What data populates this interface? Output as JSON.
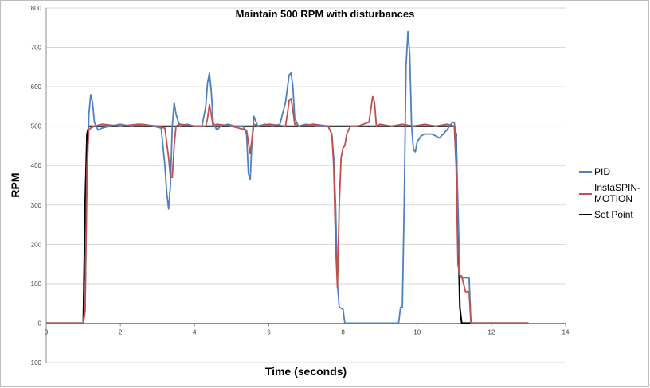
{
  "chart_data": {
    "type": "line",
    "title": "Maintain 500 RPM with disturbances",
    "xlabel": "Time (seconds)",
    "ylabel": "RPM",
    "xlim": [
      0,
      14
    ],
    "ylim": [
      -100,
      800
    ],
    "xticks": [
      0,
      2,
      4,
      6,
      8,
      10,
      12,
      14
    ],
    "yticks": [
      -100,
      0,
      100,
      200,
      300,
      400,
      500,
      600,
      700,
      800
    ],
    "grid": "horizontal",
    "legend": "right",
    "series": [
      {
        "name": "PID",
        "color": "#4f81bd",
        "x": [
          0,
          1.0,
          1.05,
          1.1,
          1.15,
          1.2,
          1.25,
          1.3,
          1.4,
          1.5,
          1.7,
          2.0,
          2.3,
          2.6,
          2.9,
          3.1,
          3.2,
          3.25,
          3.3,
          3.35,
          3.4,
          3.45,
          3.5,
          3.6,
          3.8,
          4.0,
          4.2,
          4.3,
          4.35,
          4.4,
          4.45,
          4.5,
          4.6,
          4.7,
          4.9,
          5.1,
          5.3,
          5.4,
          5.45,
          5.5,
          5.55,
          5.6,
          5.7,
          5.9,
          6.1,
          6.3,
          6.45,
          6.55,
          6.6,
          6.65,
          6.7,
          6.8,
          7.0,
          7.3,
          7.6,
          7.7,
          7.75,
          7.8,
          7.85,
          7.9,
          8.0,
          8.05,
          8.1,
          8.5,
          9.0,
          9.5,
          9.55,
          9.6,
          9.65,
          9.7,
          9.75,
          9.8,
          9.85,
          9.9,
          9.95,
          10.0,
          10.1,
          10.2,
          10.4,
          10.6,
          10.8,
          10.95,
          11.0,
          11.05,
          11.1,
          11.15,
          11.2,
          11.3,
          11.4,
          11.45,
          11.5,
          11.6,
          13.0
        ],
        "y": [
          0,
          0,
          50,
          350,
          530,
          580,
          560,
          510,
          490,
          495,
          500,
          505,
          500,
          505,
          500,
          495,
          400,
          330,
          290,
          350,
          500,
          560,
          530,
          500,
          505,
          500,
          500,
          550,
          610,
          635,
          590,
          510,
          490,
          500,
          505,
          500,
          500,
          480,
          380,
          365,
          470,
          525,
          500,
          505,
          500,
          505,
          560,
          630,
          635,
          600,
          520,
          500,
          505,
          500,
          500,
          480,
          420,
          300,
          100,
          40,
          35,
          0,
          0,
          0,
          0,
          0,
          40,
          40,
          300,
          650,
          740,
          680,
          500,
          440,
          435,
          460,
          475,
          480,
          480,
          470,
          490,
          510,
          510,
          470,
          300,
          120,
          115,
          115,
          115,
          0,
          0,
          0,
          0
        ]
      },
      {
        "name": "InstaSPIN-MOTION",
        "color": "#c0504d",
        "x": [
          0,
          1.0,
          1.05,
          1.1,
          1.15,
          1.2,
          1.3,
          1.5,
          2.0,
          2.5,
          3.0,
          3.2,
          3.3,
          3.35,
          3.4,
          3.45,
          3.5,
          3.6,
          4.0,
          4.3,
          4.35,
          4.4,
          4.45,
          4.5,
          4.6,
          5.0,
          5.4,
          5.45,
          5.5,
          5.55,
          5.6,
          5.7,
          6.0,
          6.45,
          6.5,
          6.55,
          6.6,
          6.65,
          6.7,
          6.8,
          7.2,
          7.6,
          7.7,
          7.75,
          7.8,
          7.85,
          7.9,
          7.95,
          8.0,
          8.05,
          8.1,
          8.2,
          8.4,
          8.7,
          8.8,
          8.85,
          8.9,
          9.0,
          9.3,
          9.6,
          9.9,
          10.2,
          10.5,
          10.8,
          11.0,
          11.05,
          11.1,
          11.15,
          11.2,
          11.3,
          11.35,
          11.4,
          11.45,
          11.5,
          13.0
        ],
        "y": [
          0,
          0,
          30,
          400,
          490,
          495,
          500,
          505,
          500,
          505,
          500,
          495,
          420,
          370,
          370,
          450,
          500,
          505,
          500,
          500,
          520,
          555,
          530,
          500,
          505,
          500,
          490,
          460,
          430,
          470,
          505,
          500,
          505,
          500,
          530,
          565,
          570,
          540,
          505,
          500,
          505,
          500,
          480,
          400,
          200,
          90,
          300,
          420,
          445,
          450,
          480,
          500,
          500,
          510,
          575,
          560,
          500,
          505,
          500,
          505,
          500,
          505,
          500,
          505,
          500,
          400,
          150,
          120,
          120,
          80,
          80,
          80,
          0,
          0,
          0
        ]
      },
      {
        "name": "Set Point",
        "color": "#000000",
        "x": [
          0,
          1.0,
          1.05,
          1.1,
          1.15,
          11.0,
          11.05,
          11.1,
          11.15,
          11.2,
          13.0
        ],
        "y": [
          0,
          0,
          300,
          480,
          500,
          500,
          480,
          250,
          40,
          0,
          0
        ]
      }
    ]
  }
}
